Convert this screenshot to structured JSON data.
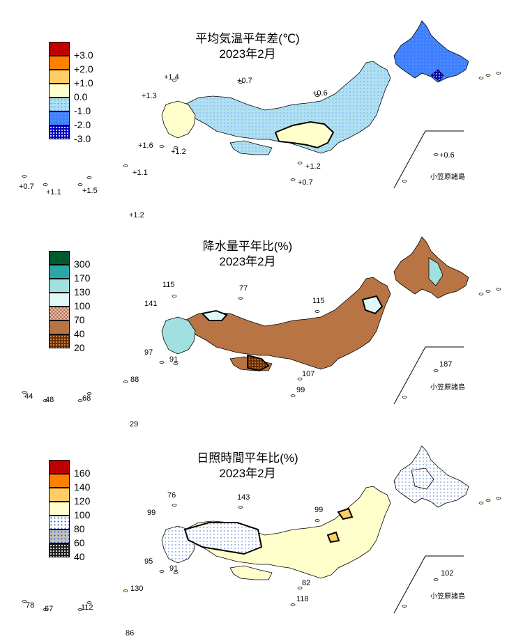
{
  "panels": [
    {
      "title": "平均気温平年差(℃)",
      "period": "2023年2月",
      "legend": [
        {
          "label": "+3.0",
          "color": "#c00000",
          "pattern": "solid"
        },
        {
          "label": "+2.0",
          "color": "#ff8000",
          "pattern": "solid"
        },
        {
          "label": "+1.0",
          "color": "#ffcc66",
          "pattern": "solid"
        },
        {
          "label": "0.0",
          "color": "#ffffcc",
          "pattern": "solid"
        },
        {
          "label": "-1.0",
          "color": "#b0e0f0",
          "pattern": "dots-light"
        },
        {
          "label": "-2.0",
          "color": "#4080ff",
          "pattern": "dots-mid"
        },
        {
          "label": "-3.0",
          "color": "#0000c0",
          "pattern": "dots-dark"
        }
      ],
      "stations": [
        {
          "id": "tsushima",
          "value": "+1.4"
        },
        {
          "id": "sado",
          "value": "+0.7"
        },
        {
          "id": "fukue",
          "value": "+1.3"
        },
        {
          "id": "hachijo",
          "value": "+0.6"
        },
        {
          "id": "yakushima",
          "value": "+1.6"
        },
        {
          "id": "tanegashima",
          "value": "+1.2"
        },
        {
          "id": "miyakejima",
          "value": "+1.2"
        },
        {
          "id": "okinoshima",
          "value": "+0.7"
        },
        {
          "id": "nase",
          "value": "+1.1"
        },
        {
          "id": "ishigaki",
          "value": "+0.7"
        },
        {
          "id": "miyako",
          "value": "+1.1"
        },
        {
          "id": "naha",
          "value": "+1.5"
        },
        {
          "id": "minamidaito",
          "value": "+1.2"
        },
        {
          "id": "chichijima",
          "value": "+0.6"
        }
      ],
      "inset_label": "小笠原諸島"
    },
    {
      "title": "降水量平年比(%)",
      "period": "2023年2月",
      "legend": [
        {
          "label": "300",
          "color": "#005a2e",
          "pattern": "solid"
        },
        {
          "label": "170",
          "color": "#2aa8a8",
          "pattern": "solid"
        },
        {
          "label": "130",
          "color": "#a0e0e0",
          "pattern": "solid"
        },
        {
          "label": "100",
          "color": "#e0f8f8",
          "pattern": "solid"
        },
        {
          "label": "70",
          "color": "#e8c8b0",
          "pattern": "check-light"
        },
        {
          "label": "40",
          "color": "#c07838",
          "pattern": "check-mid"
        },
        {
          "label": "20",
          "color": "#6a3000",
          "pattern": "dots-dark"
        }
      ],
      "stations": [
        {
          "id": "tsushima",
          "value": "115"
        },
        {
          "id": "sado",
          "value": "77"
        },
        {
          "id": "fukue",
          "value": "141"
        },
        {
          "id": "hachijo",
          "value": "115"
        },
        {
          "id": "yakushima",
          "value": "97"
        },
        {
          "id": "tanegashima",
          "value": "91"
        },
        {
          "id": "miyakejima",
          "value": "107"
        },
        {
          "id": "okinoshima",
          "value": "99"
        },
        {
          "id": "nase",
          "value": "88"
        },
        {
          "id": "ishigaki",
          "value": "44"
        },
        {
          "id": "miyako",
          "value": "48"
        },
        {
          "id": "naha",
          "value": "68"
        },
        {
          "id": "minamidaito",
          "value": "29"
        },
        {
          "id": "chichijima",
          "value": "187"
        }
      ],
      "inset_label": "小笠原諸島"
    },
    {
      "title": "日照時間平年比(%)",
      "period": "2023年2月",
      "legend": [
        {
          "label": "160",
          "color": "#c00000",
          "pattern": "solid"
        },
        {
          "label": "140",
          "color": "#ff8000",
          "pattern": "solid"
        },
        {
          "label": "120",
          "color": "#ffcc66",
          "pattern": "solid"
        },
        {
          "label": "100",
          "color": "#ffffcc",
          "pattern": "solid"
        },
        {
          "label": "80",
          "color": "#ffffff",
          "pattern": "dots-light"
        },
        {
          "label": "60",
          "color": "#c0c0c0",
          "pattern": "dots-mid"
        },
        {
          "label": "40",
          "color": "#202020",
          "pattern": "dots-dark"
        }
      ],
      "stations": [
        {
          "id": "tsushima",
          "value": "76"
        },
        {
          "id": "sado",
          "value": "143"
        },
        {
          "id": "fukue",
          "value": "99"
        },
        {
          "id": "hachijo",
          "value": "99"
        },
        {
          "id": "yakushima",
          "value": "95"
        },
        {
          "id": "tanegashima",
          "value": "91"
        },
        {
          "id": "miyakejima",
          "value": "82"
        },
        {
          "id": "okinoshima",
          "value": "118"
        },
        {
          "id": "nase",
          "value": "130"
        },
        {
          "id": "ishigaki",
          "value": "78"
        },
        {
          "id": "miyako",
          "value": "67"
        },
        {
          "id": "naha",
          "value": "112"
        },
        {
          "id": "minamidaito",
          "value": "86"
        },
        {
          "id": "chichijima",
          "value": "102"
        }
      ],
      "inset_label": "小笠原諸島"
    }
  ]
}
